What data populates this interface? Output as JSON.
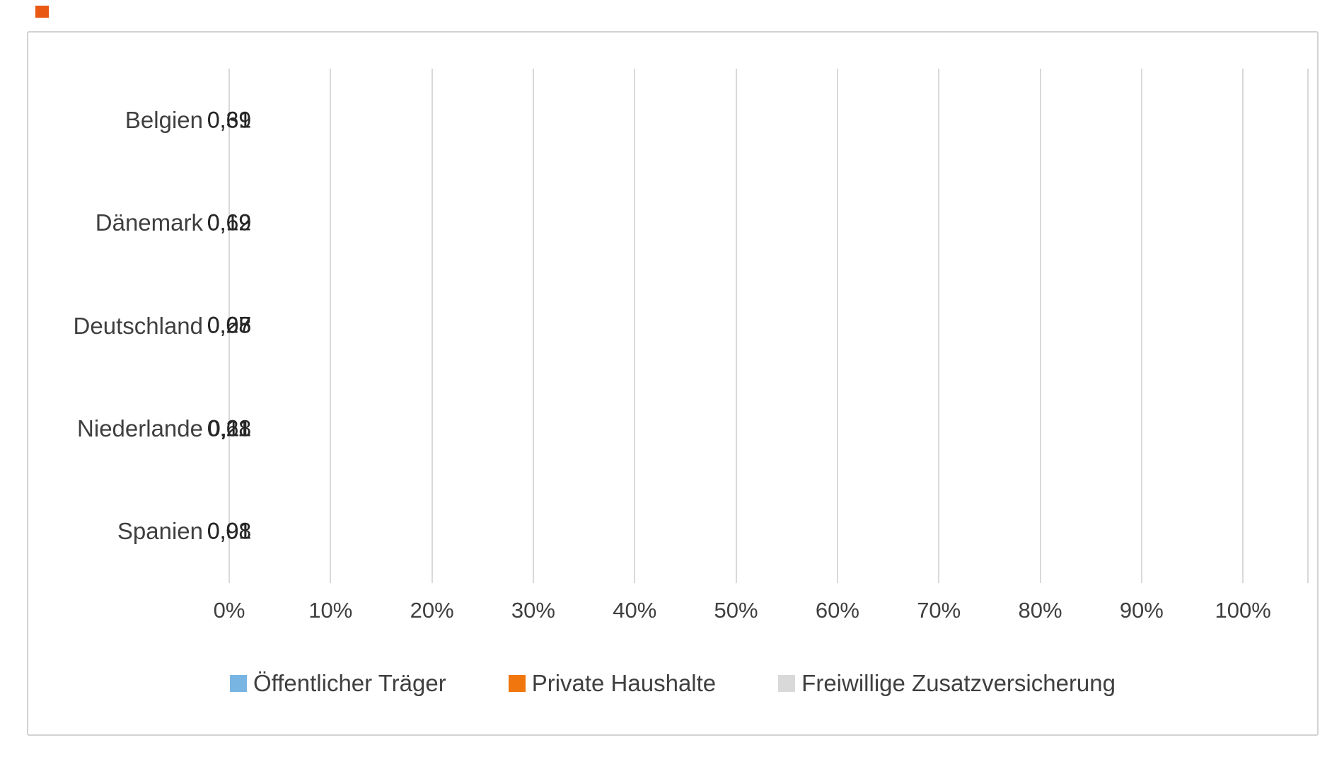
{
  "page": {
    "background": "#FFFFFF",
    "card_border": "#D2D2D2",
    "corner_marker_color": "#E95913"
  },
  "chart_data": {
    "type": "bar",
    "orientation": "horizontal",
    "stacked": true,
    "title": "",
    "categories": [
      "Belgien",
      "Dänemark",
      "Deutschland",
      "Niederlande",
      "Spanien"
    ],
    "series": [
      {
        "name": "Öffentlicher Träger",
        "color": "#79B5E3",
        "values": [
          0.39,
          0.19,
          0.68,
          0.11,
          0.01
        ],
        "labels": [
          "0,39",
          "0,19",
          "0,68",
          "0,11",
          "0,01"
        ]
      },
      {
        "name": "Private Haushalte",
        "color": "#F0760D",
        "values": [
          0.61,
          0.69,
          0.25,
          0.21,
          0.98
        ],
        "labels": [
          "0,61",
          "0,69",
          "0,25",
          "0,21",
          "0,98"
        ]
      },
      {
        "name": "Freiwillige Zusatzversicherung",
        "color": "#D9D9D9",
        "values": [
          0,
          0.12,
          0.07,
          0.68,
          0.01
        ],
        "labels": [
          null,
          "0,12",
          "0,07",
          "0,68",
          "0,01"
        ]
      }
    ],
    "x_ticks": [
      "0%",
      "10%",
      "20%",
      "30%",
      "40%",
      "50%",
      "60%",
      "70%",
      "80%",
      "90%",
      "100%"
    ],
    "xlim_percent": [
      0,
      106.3
    ],
    "axis_span_fraction": 0.9404,
    "grid": true,
    "gridline_color": "#D9D9D9",
    "data_label_color": "#262626",
    "axis_text_color": "#3F3F3F",
    "legend_position": "bottom"
  }
}
